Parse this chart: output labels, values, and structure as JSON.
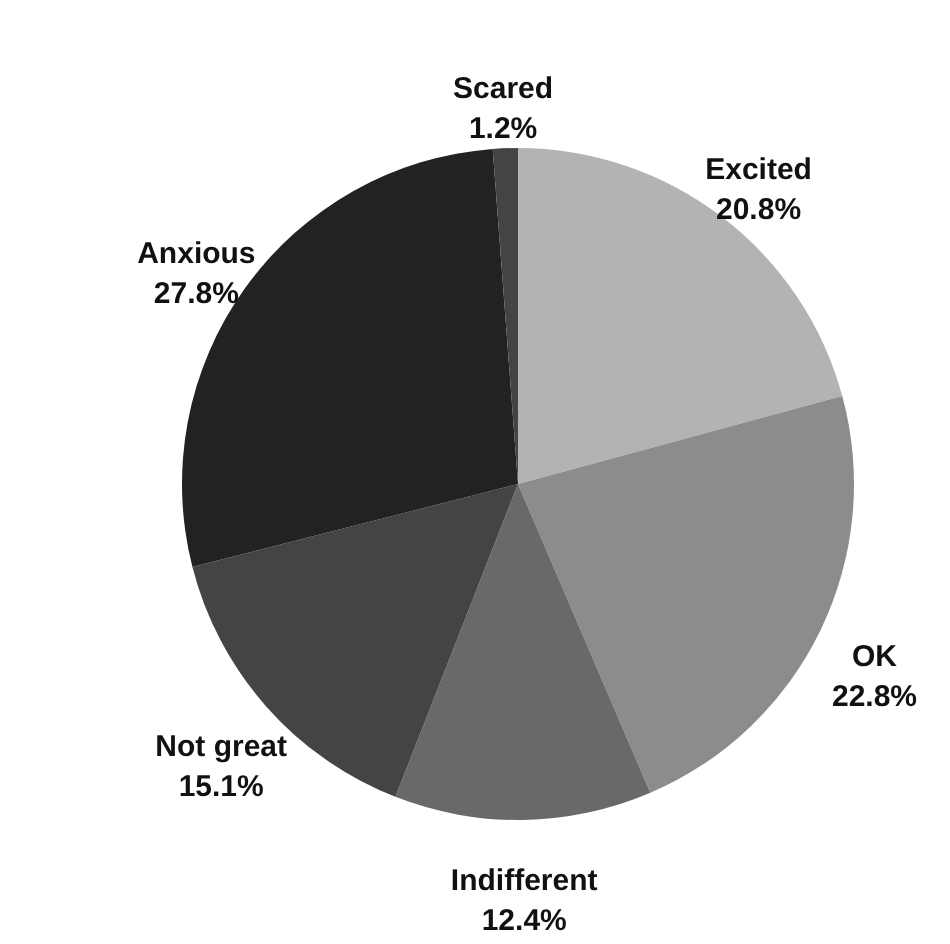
{
  "chart_data": {
    "type": "pie",
    "categories": [
      "Excited",
      "OK",
      "Indifferent",
      "Not great",
      "Anxious",
      "Scared"
    ],
    "values": [
      20.8,
      22.8,
      12.4,
      15.1,
      27.8,
      1.2
    ],
    "value_labels": [
      "20.8%",
      "22.8%",
      "12.4%",
      "15.1%",
      "27.8%",
      "1.2%"
    ],
    "colors": [
      "#b3b3b3",
      "#8c8c8c",
      "#696969",
      "#444444",
      "#222222",
      "#444444"
    ]
  }
}
